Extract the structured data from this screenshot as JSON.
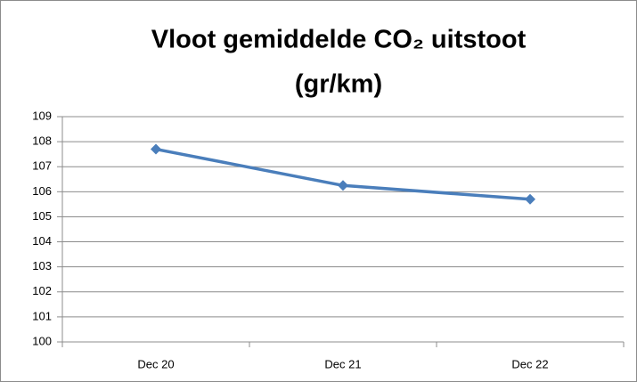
{
  "chart_data": {
    "type": "line",
    "title": [
      "Vloot gemiddelde CO₂ uitstoot",
      "(gr/km)"
    ],
    "categories": [
      "Dec 20",
      "Dec 21",
      "Dec 22"
    ],
    "series": [
      {
        "color": "#4a7ebb",
        "values": [
          107.7,
          106.25,
          105.7
        ]
      }
    ],
    "ylim": [
      100,
      109
    ],
    "yticks": [
      100,
      101,
      102,
      103,
      104,
      105,
      106,
      107,
      108,
      109
    ],
    "grid": true
  }
}
